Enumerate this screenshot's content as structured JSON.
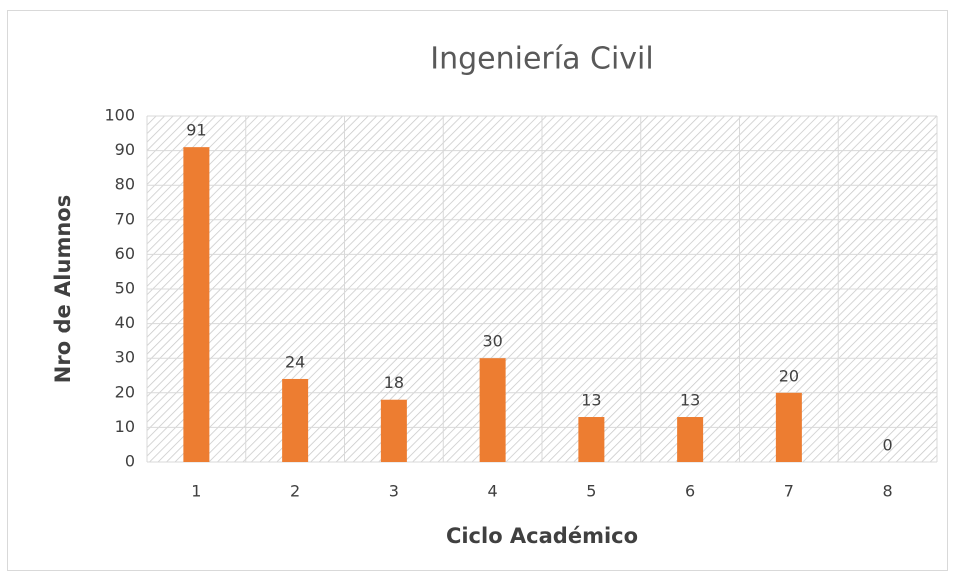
{
  "chart_data": {
    "type": "bar",
    "title": "Ingeniería Civil",
    "x_label": "Ciclo Académico",
    "y_label": "Nro de Alumnos",
    "categories": [
      "1",
      "2",
      "3",
      "4",
      "5",
      "6",
      "7",
      "8"
    ],
    "values": [
      91,
      24,
      18,
      30,
      13,
      13,
      20,
      0
    ],
    "color": "#ed7d31",
    "ylim": [
      0,
      100
    ],
    "yticks": [
      0,
      10,
      20,
      30,
      40,
      50,
      60,
      70,
      80,
      90,
      100
    ],
    "grid": true
  }
}
